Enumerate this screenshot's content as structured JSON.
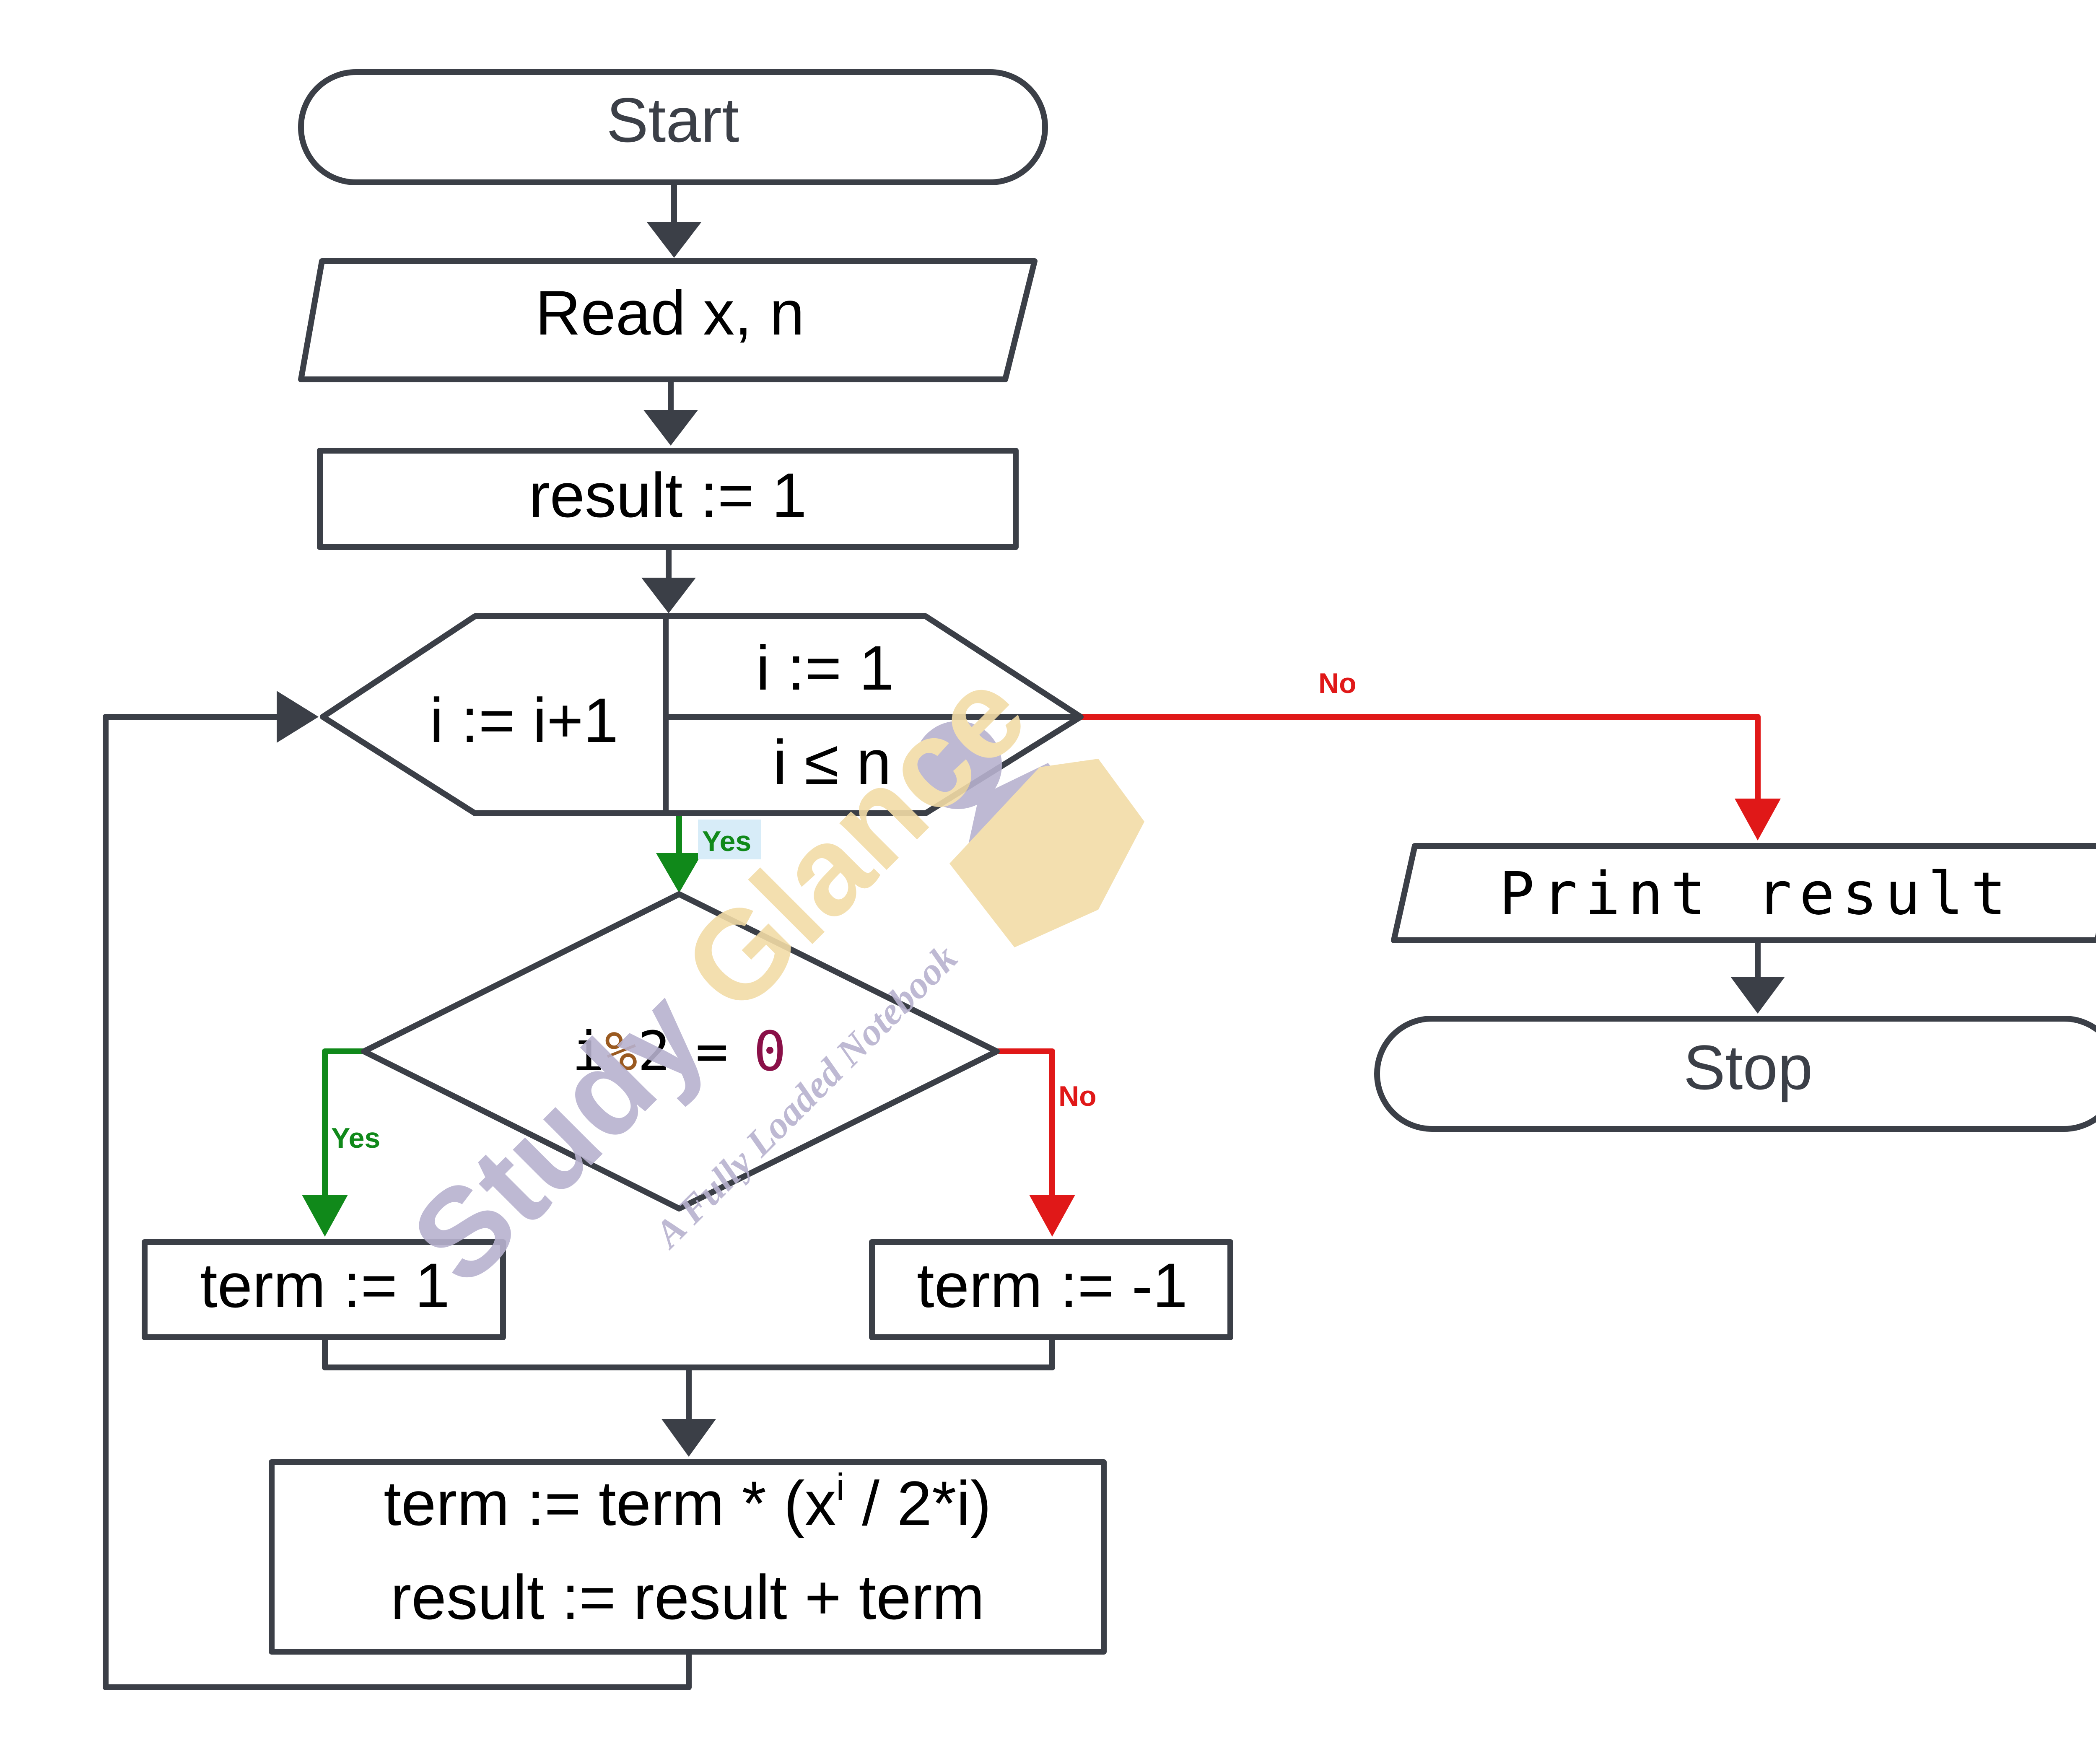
{
  "nodes": {
    "start": "Start",
    "read": "Read x, n",
    "init": "result := 1",
    "loop_update": "i := i+1",
    "loop_init": "i := 1",
    "loop_cond": "i ≤ n",
    "decision": {
      "a": "i",
      "op": "%",
      "b": "2",
      "eq": "=",
      "c": "0"
    },
    "term_pos": "term := 1",
    "term_neg": "term := -1",
    "calc": {
      "line1_pre": "term := term * (x",
      "line1_sup": "i",
      "line1_post": " / 2*i)",
      "line2": "result := result + term"
    },
    "print": "Print result",
    "stop": "Stop"
  },
  "edge_labels": {
    "loop_no": "No",
    "loop_yes": "Yes",
    "dec_yes": "Yes",
    "dec_no": "No"
  },
  "watermark": {
    "brand": "Study Glance",
    "tagline": "A Fully Loaded Notebook"
  },
  "colors": {
    "dark": "#3b3f47",
    "red": "#e01818",
    "green": "#10891a",
    "wm_purple": "#b7b1cf",
    "wm_yellow": "#f2dca6"
  }
}
